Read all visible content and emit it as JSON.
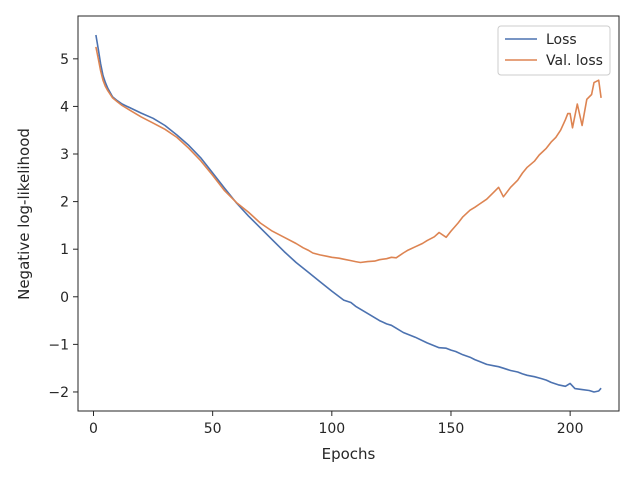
{
  "chart_data": {
    "type": "line",
    "xlabel": "Epochs",
    "ylabel": "Negative log-likelihood",
    "xlim": [
      -6.5,
      220.5
    ],
    "ylim": [
      -2.4,
      5.9
    ],
    "xticks": [
      0,
      50,
      100,
      150,
      200
    ],
    "yticks": [
      -2,
      -1,
      0,
      1,
      2,
      3,
      4,
      5
    ],
    "grid": false,
    "legend_position": "top-right",
    "series": [
      {
        "name": "Loss",
        "color": "#4c72b0",
        "x": [
          1,
          2,
          3,
          4,
          5,
          6,
          8,
          10,
          12,
          15,
          20,
          25,
          30,
          35,
          40,
          45,
          50,
          55,
          60,
          65,
          70,
          75,
          80,
          85,
          90,
          95,
          100,
          105,
          108,
          110,
          115,
          120,
          123,
          125,
          127,
          130,
          135,
          140,
          145,
          148,
          150,
          152,
          155,
          158,
          160,
          162,
          165,
          168,
          170,
          172,
          175,
          178,
          180,
          182,
          185,
          188,
          190,
          192,
          195,
          198,
          200,
          202,
          205,
          208,
          210,
          212,
          213
        ],
        "y": [
          5.5,
          5.2,
          4.9,
          4.65,
          4.5,
          4.38,
          4.2,
          4.12,
          4.05,
          3.98,
          3.86,
          3.75,
          3.6,
          3.4,
          3.18,
          2.92,
          2.6,
          2.28,
          1.97,
          1.7,
          1.45,
          1.2,
          0.95,
          0.72,
          0.52,
          0.32,
          0.12,
          -0.07,
          -0.12,
          -0.2,
          -0.35,
          -0.5,
          -0.57,
          -0.6,
          -0.66,
          -0.75,
          -0.85,
          -0.97,
          -1.07,
          -1.08,
          -1.12,
          -1.15,
          -1.22,
          -1.27,
          -1.32,
          -1.36,
          -1.42,
          -1.45,
          -1.47,
          -1.5,
          -1.55,
          -1.58,
          -1.62,
          -1.65,
          -1.68,
          -1.72,
          -1.75,
          -1.8,
          -1.85,
          -1.88,
          -1.82,
          -1.93,
          -1.95,
          -1.97,
          -2.0,
          -1.98,
          -1.92
        ]
      },
      {
        "name": "Val. loss",
        "color": "#dd8452",
        "x": [
          1,
          2,
          3,
          4,
          5,
          6,
          8,
          10,
          12,
          15,
          20,
          25,
          30,
          35,
          40,
          45,
          50,
          55,
          60,
          65,
          70,
          75,
          80,
          85,
          88,
          90,
          92,
          95,
          98,
          100,
          103,
          105,
          108,
          110,
          112,
          115,
          118,
          120,
          123,
          125,
          127,
          130,
          132,
          135,
          138,
          140,
          143,
          145,
          148,
          150,
          153,
          155,
          158,
          160,
          162,
          165,
          168,
          170,
          172,
          175,
          178,
          180,
          182,
          185,
          187,
          190,
          192,
          194,
          196,
          198,
          199,
          200,
          201,
          203,
          205,
          207,
          209,
          210,
          212,
          213
        ],
        "y": [
          5.25,
          5.0,
          4.75,
          4.55,
          4.42,
          4.33,
          4.18,
          4.1,
          4.02,
          3.93,
          3.78,
          3.65,
          3.52,
          3.35,
          3.12,
          2.86,
          2.55,
          2.23,
          1.98,
          1.78,
          1.55,
          1.38,
          1.25,
          1.12,
          1.03,
          0.98,
          0.92,
          0.88,
          0.85,
          0.83,
          0.81,
          0.79,
          0.76,
          0.74,
          0.72,
          0.74,
          0.75,
          0.78,
          0.8,
          0.83,
          0.82,
          0.92,
          0.98,
          1.05,
          1.12,
          1.18,
          1.26,
          1.35,
          1.25,
          1.38,
          1.55,
          1.68,
          1.82,
          1.88,
          1.95,
          2.05,
          2.2,
          2.3,
          2.1,
          2.3,
          2.45,
          2.6,
          2.72,
          2.85,
          2.98,
          3.12,
          3.25,
          3.35,
          3.5,
          3.72,
          3.85,
          3.85,
          3.55,
          4.05,
          3.6,
          4.15,
          4.25,
          4.5,
          4.55,
          4.18
        ]
      }
    ]
  }
}
